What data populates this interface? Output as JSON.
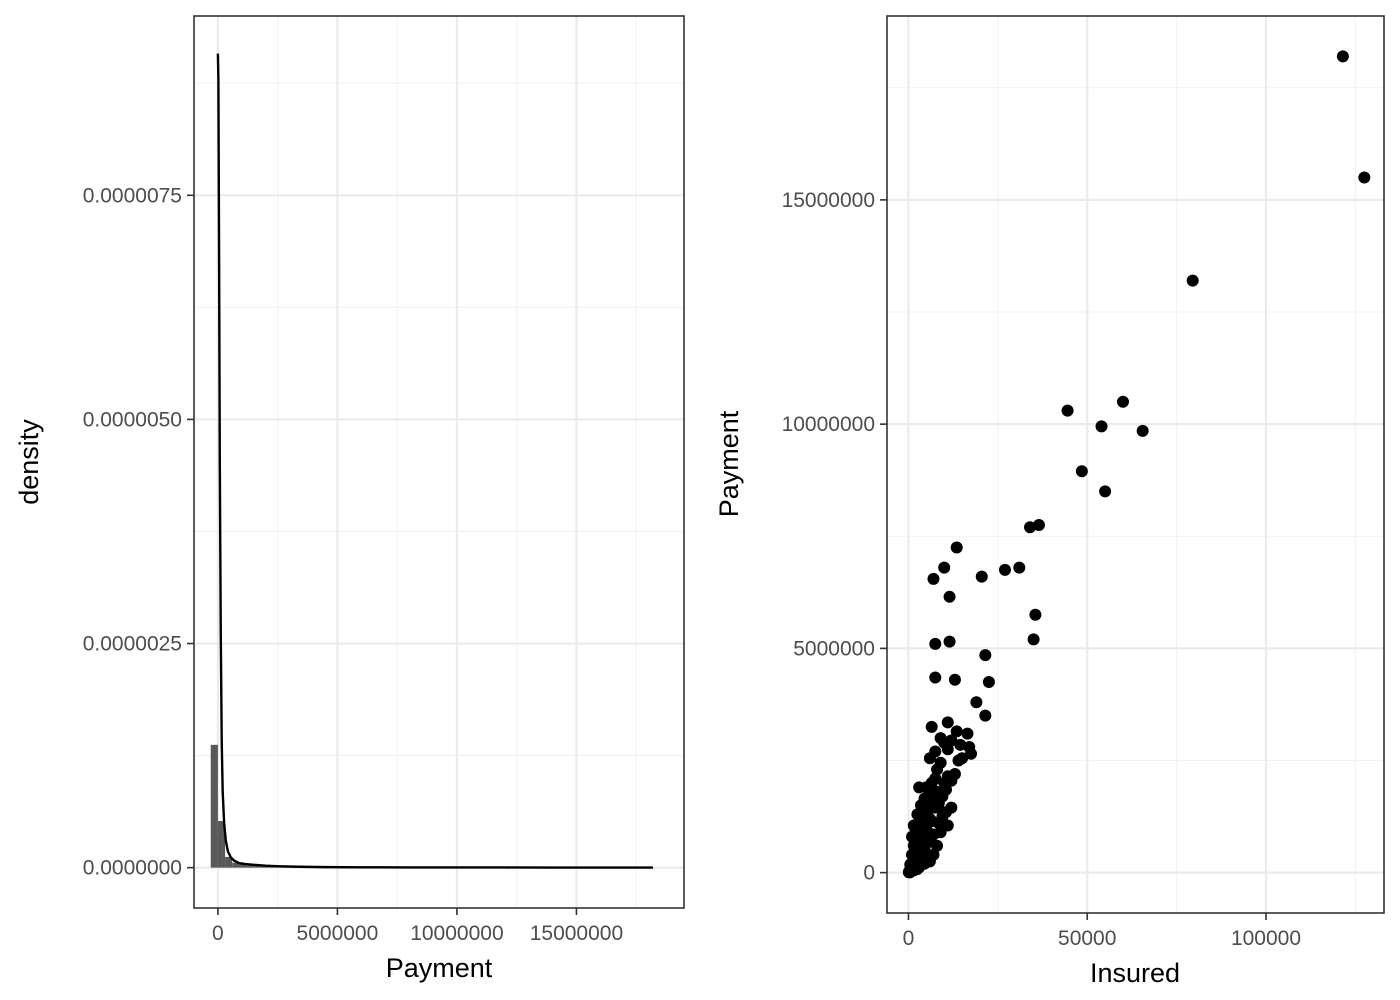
{
  "chart_data": [
    {
      "type": "histogram",
      "xlabel": "Payment",
      "ylabel": "density",
      "xlim": [
        -1000000,
        19500000
      ],
      "ylim": [
        -4.5e-07,
        9.5e-06
      ],
      "x_ticks": [
        0,
        5000000,
        10000000,
        15000000
      ],
      "x_tick_labels": [
        "0",
        "5000000",
        "10000000",
        "15000000"
      ],
      "y_ticks": [
        0,
        2.5e-06,
        5e-06,
        7.5e-06
      ],
      "y_tick_labels": [
        "0.0000000",
        "0.0000025",
        "0.0000050",
        "0.0000075"
      ],
      "grid": true,
      "bar_color": "#595959",
      "line_color": "#000000",
      "histogram": {
        "bin_starts": [
          -300000,
          0,
          300000,
          600000,
          900000,
          1200000,
          1500000,
          1800000,
          2100000,
          2400000,
          2700000,
          3000000,
          3300000,
          3600000
        ],
        "bin_width": 300000,
        "density": [
          1.37e-06,
          5.2e-07,
          1.2e-07,
          5.5e-08,
          3.5e-08,
          2.5e-08,
          2e-08,
          1.5e-08,
          1.2e-08,
          1e-08,
          8e-09,
          6e-09,
          5e-09,
          4e-09
        ]
      },
      "density_curve": {
        "x": [
          0,
          20000,
          50000,
          80000,
          120000,
          160000,
          200000,
          260000,
          330000,
          420000,
          550000,
          700000,
          900000,
          1150000,
          1500000,
          2000000,
          2600000,
          3400000,
          4500000,
          6000000,
          8000000,
          10000000,
          12000000,
          14000000,
          16000000,
          18200000
        ],
        "y": [
          9.08e-06,
          8.8e-06,
          6.8e-06,
          4.5e-06,
          2.6e-06,
          1.4e-06,
          8.5e-07,
          5e-07,
          3e-07,
          1.8e-07,
          1.1e-07,
          7.5e-08,
          5e-08,
          4e-08,
          3.2e-08,
          2.2e-08,
          1.5e-08,
          1e-08,
          6e-09,
          4e-09,
          3e-09,
          2e-09,
          2e-09,
          1e-09,
          1e-09,
          1e-09
        ]
      }
    },
    {
      "type": "scatter",
      "xlabel": "Insured",
      "ylabel": "Payment",
      "xlim": [
        -6000,
        133000
      ],
      "ylim": [
        -900000,
        19100000
      ],
      "x_ticks": [
        0,
        50000,
        100000
      ],
      "x_tick_labels": [
        "0",
        "50000",
        "100000"
      ],
      "y_ticks": [
        0,
        5000000,
        10000000,
        15000000
      ],
      "y_tick_labels": [
        "0",
        "5000000",
        "10000000",
        "15000000"
      ],
      "grid": true,
      "point_color": "#000000",
      "points": [
        [
          121500,
          18200000
        ],
        [
          127500,
          15500000
        ],
        [
          79500,
          13200000
        ],
        [
          44500,
          10300000
        ],
        [
          60000,
          10500000
        ],
        [
          54000,
          9950000
        ],
        [
          65500,
          9850000
        ],
        [
          48500,
          8950000
        ],
        [
          55000,
          8500000
        ],
        [
          34000,
          7700000
        ],
        [
          36500,
          7750000
        ],
        [
          13500,
          7250000
        ],
        [
          27000,
          6750000
        ],
        [
          31000,
          6800000
        ],
        [
          10000,
          6800000
        ],
        [
          7000,
          6550000
        ],
        [
          20500,
          6600000
        ],
        [
          11500,
          6150000
        ],
        [
          35500,
          5750000
        ],
        [
          35000,
          5200000
        ],
        [
          7500,
          5100000
        ],
        [
          11500,
          5150000
        ],
        [
          21500,
          4850000
        ],
        [
          7500,
          4350000
        ],
        [
          13000,
          4300000
        ],
        [
          22500,
          4250000
        ],
        [
          19000,
          3800000
        ],
        [
          21500,
          3500000
        ],
        [
          11000,
          3350000
        ],
        [
          6500,
          3250000
        ],
        [
          13500,
          3150000
        ],
        [
          16500,
          3100000
        ],
        [
          9000,
          3000000
        ],
        [
          10000,
          2900000
        ],
        [
          12000,
          2950000
        ],
        [
          14500,
          2850000
        ],
        [
          17000,
          2800000
        ],
        [
          17500,
          2650000
        ],
        [
          7500,
          2700000
        ],
        [
          11000,
          2750000
        ],
        [
          14000,
          2500000
        ],
        [
          15000,
          2550000
        ],
        [
          9000,
          2450000
        ],
        [
          6000,
          2550000
        ],
        [
          8000,
          2300000
        ],
        [
          11000,
          2150000
        ],
        [
          12000,
          2050000
        ],
        [
          10000,
          2000000
        ],
        [
          6500,
          2000000
        ],
        [
          5000,
          1900000
        ],
        [
          3000,
          1900000
        ],
        [
          8000,
          1800000
        ],
        [
          9500,
          1700000
        ],
        [
          4500,
          1650000
        ],
        [
          6500,
          1600000
        ],
        [
          3500,
          1500000
        ],
        [
          7500,
          1450000
        ],
        [
          5500,
          1400000
        ],
        [
          10500,
          1350000
        ],
        [
          2500,
          1300000
        ],
        [
          4000,
          1250000
        ],
        [
          6000,
          1200000
        ],
        [
          8500,
          1100000
        ],
        [
          3000,
          1100000
        ],
        [
          1500,
          1050000
        ],
        [
          5000,
          1000000
        ],
        [
          11000,
          1050000
        ],
        [
          2000,
          950000
        ],
        [
          4500,
          900000
        ],
        [
          7000,
          850000
        ],
        [
          9000,
          900000
        ],
        [
          1000,
          800000
        ],
        [
          3500,
          750000
        ],
        [
          6000,
          700000
        ],
        [
          2500,
          650000
        ],
        [
          8000,
          600000
        ],
        [
          1500,
          600000
        ],
        [
          4500,
          550000
        ],
        [
          3000,
          500000
        ],
        [
          7000,
          400000
        ],
        [
          2000,
          450000
        ],
        [
          5500,
          350000
        ],
        [
          1000,
          400000
        ],
        [
          3500,
          300000
        ],
        [
          2500,
          250000
        ],
        [
          1500,
          200000
        ],
        [
          4500,
          200000
        ],
        [
          500,
          180000
        ],
        [
          2000,
          150000
        ],
        [
          3000,
          120000
        ],
        [
          1000,
          100000
        ],
        [
          600,
          60000
        ],
        [
          1500,
          50000
        ],
        [
          300,
          40000
        ],
        [
          800,
          30000
        ],
        [
          200,
          15000
        ],
        [
          100,
          8000
        ],
        [
          400,
          5000
        ],
        [
          2500,
          80000
        ],
        [
          6000,
          250000
        ],
        [
          4000,
          400000
        ],
        [
          5000,
          650000
        ],
        [
          9500,
          1250000
        ],
        [
          12000,
          1450000
        ],
        [
          3500,
          1050000
        ],
        [
          6500,
          1150000
        ],
        [
          8500,
          1550000
        ],
        [
          10500,
          1850000
        ],
        [
          13000,
          2200000
        ],
        [
          6000,
          1750000
        ],
        [
          7500,
          2100000
        ]
      ]
    }
  ]
}
